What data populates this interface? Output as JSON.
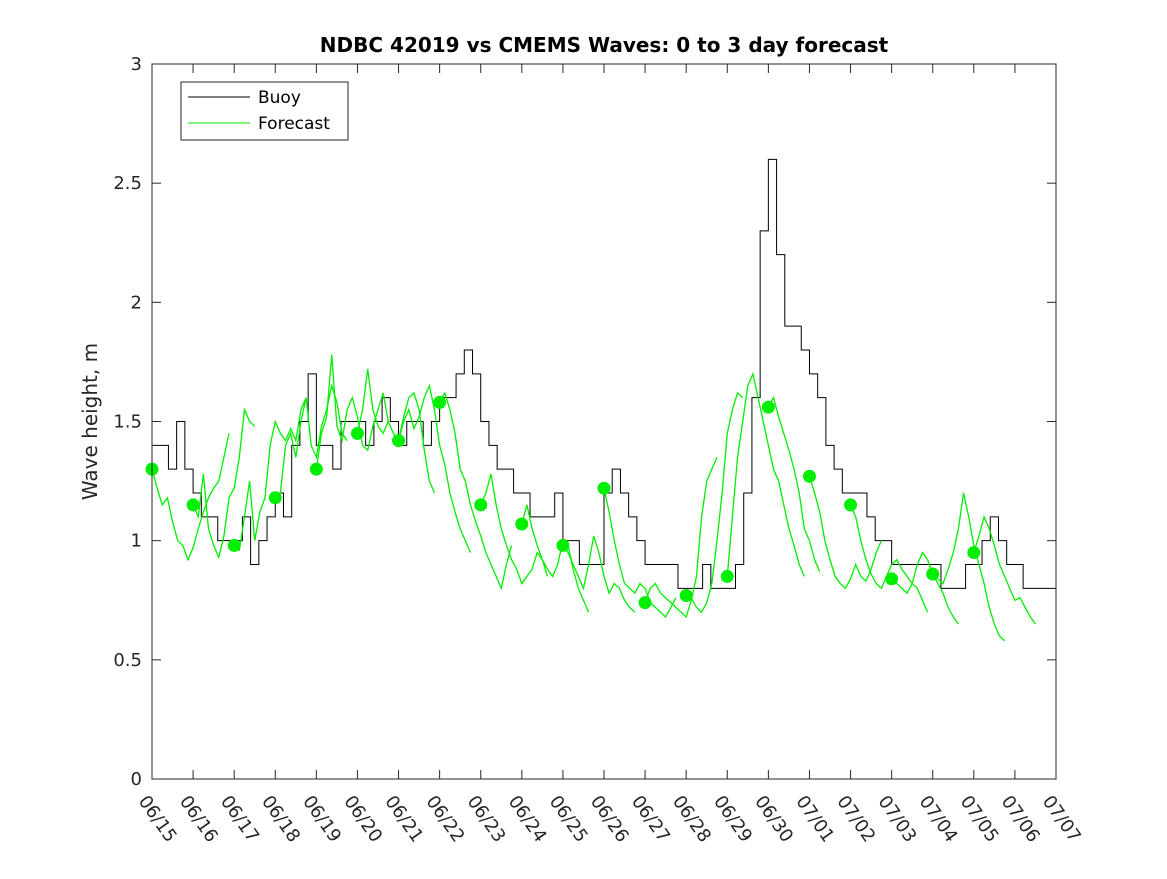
{
  "chart_data": {
    "type": "line",
    "title": "NDBC 42019 vs CMEMS Waves: 0 to 3 day forecast",
    "xlabel": "",
    "ylabel": "Wave height, m",
    "ylim": [
      0,
      3
    ],
    "xlim": [
      "06/15",
      "07/07"
    ],
    "x_ticks": [
      "06/15",
      "06/16",
      "06/17",
      "06/18",
      "06/19",
      "06/20",
      "06/21",
      "06/22",
      "06/23",
      "06/24",
      "06/25",
      "06/26",
      "06/27",
      "06/28",
      "06/29",
      "06/30",
      "07/01",
      "07/02",
      "07/03",
      "07/04",
      "07/05",
      "07/06",
      "07/07"
    ],
    "y_ticks": [
      "0",
      "0.5",
      "1",
      "1.5",
      "2",
      "2.5",
      "3"
    ],
    "grid": false,
    "legend_position": "top-left",
    "colors": {
      "buoy": "#000000",
      "forecast": "#00ee00",
      "axes": "#262626"
    },
    "buoy": {
      "name": "Buoy",
      "day": [
        0,
        0.2,
        0.4,
        0.6,
        0.8,
        1,
        1.2,
        1.4,
        1.6,
        1.8,
        2,
        2.2,
        2.4,
        2.6,
        2.8,
        3,
        3.2,
        3.4,
        3.6,
        3.8,
        4,
        4.2,
        4.4,
        4.6,
        4.8,
        5,
        5.2,
        5.4,
        5.6,
        5.8,
        6,
        6.2,
        6.4,
        6.6,
        6.8,
        7,
        7.2,
        7.4,
        7.6,
        7.8,
        8,
        8.2,
        8.4,
        8.6,
        8.8,
        9,
        9.2,
        9.4,
        9.6,
        9.8,
        10,
        10.2,
        10.4,
        10.6,
        10.8,
        11,
        11.2,
        11.4,
        11.6,
        11.8,
        12,
        12.2,
        12.4,
        12.6,
        12.8,
        13,
        13.2,
        13.4,
        13.6,
        13.8,
        14,
        14.2,
        14.4,
        14.6,
        14.8,
        15,
        15.2,
        15.4,
        15.6,
        15.8,
        16,
        16.2,
        16.4,
        16.6,
        16.8,
        17,
        17.2,
        17.4,
        17.6,
        17.8,
        18,
        18.2,
        18.4,
        18.6,
        18.8,
        19,
        19.2,
        19.4,
        19.6,
        19.8,
        20,
        20.2,
        20.4,
        20.6,
        20.8,
        21,
        21.2,
        21.4,
        21.6,
        21.8,
        22
      ],
      "values": [
        1.4,
        1.4,
        1.3,
        1.5,
        1.3,
        1.2,
        1.1,
        1.1,
        1.0,
        1.0,
        1.0,
        1.1,
        0.9,
        1.0,
        1.1,
        1.2,
        1.1,
        1.4,
        1.5,
        1.7,
        1.4,
        1.4,
        1.3,
        1.5,
        1.5,
        1.5,
        1.4,
        1.5,
        1.6,
        1.5,
        1.4,
        1.5,
        1.5,
        1.4,
        1.5,
        1.6,
        1.6,
        1.7,
        1.8,
        1.7,
        1.5,
        1.4,
        1.3,
        1.3,
        1.2,
        1.2,
        1.1,
        1.1,
        1.1,
        1.2,
        1.0,
        1.0,
        0.9,
        0.9,
        0.9,
        1.2,
        1.3,
        1.2,
        1.1,
        1.0,
        0.9,
        0.9,
        0.9,
        0.9,
        0.8,
        0.8,
        0.8,
        0.9,
        0.8,
        0.8,
        0.8,
        0.9,
        1.2,
        1.6,
        2.3,
        2.6,
        2.2,
        1.9,
        1.9,
        1.8,
        1.7,
        1.6,
        1.4,
        1.3,
        1.2,
        1.2,
        1.2,
        1.1,
        1.0,
        1.0,
        0.9,
        0.9,
        0.9,
        0.9,
        0.9,
        0.9,
        0.8,
        0.8,
        0.8,
        0.9,
        0.9,
        1.0,
        1.1,
        1.0,
        0.9,
        0.9,
        0.8,
        0.8,
        0.8,
        0.8,
        0.8
      ]
    },
    "forecast_name": "Forecast",
    "forecast_markers": {
      "day": [
        0,
        1,
        2,
        3,
        4,
        5,
        6,
        7,
        8,
        9,
        10,
        11,
        12,
        13,
        14,
        15,
        16,
        17,
        18,
        19,
        20
      ],
      "values": [
        1.3,
        1.15,
        0.98,
        1.18,
        1.3,
        1.45,
        1.42,
        1.58,
        1.15,
        1.07,
        0.98,
        1.22,
        0.74,
        0.77,
        0.85,
        1.56,
        1.27,
        1.15,
        0.84,
        0.86,
        0.95
      ]
    },
    "forecast_runs": [
      {
        "start_day": 0,
        "values": [
          1.3,
          1.22,
          1.15,
          1.18,
          1.08,
          1.0,
          0.98,
          0.92,
          0.97,
          1.05,
          1.12,
          1.18,
          1.22,
          1.25,
          1.35,
          1.45
        ]
      },
      {
        "start_day": 1,
        "values": [
          1.15,
          1.1,
          1.28,
          1.05,
          0.98,
          0.93,
          1.02,
          1.18,
          1.22,
          1.35,
          1.55,
          1.5,
          1.48
        ]
      },
      {
        "start_day": 2,
        "values": [
          0.98,
          0.96,
          1.1,
          1.25,
          1.0,
          1.12,
          1.18,
          1.4,
          1.5,
          1.45,
          1.42,
          1.47,
          1.42,
          1.55,
          1.6
        ]
      },
      {
        "start_day": 3,
        "values": [
          1.18,
          1.2,
          1.4,
          1.45,
          1.35,
          1.5,
          1.6,
          1.4,
          1.35,
          1.48,
          1.55,
          1.65,
          1.58,
          1.45,
          1.42
        ]
      },
      {
        "start_day": 4,
        "values": [
          1.3,
          1.45,
          1.52,
          1.78,
          1.48,
          1.42,
          1.55,
          1.6,
          1.52,
          1.4,
          1.38,
          1.48,
          1.55,
          1.62,
          1.5
        ]
      },
      {
        "start_day": 5,
        "values": [
          1.45,
          1.55,
          1.72,
          1.55,
          1.48,
          1.45,
          1.5,
          1.45,
          1.42,
          1.52,
          1.6,
          1.62,
          1.55,
          1.38,
          1.25,
          1.2
        ]
      },
      {
        "start_day": 6,
        "values": [
          1.42,
          1.5,
          1.55,
          1.47,
          1.52,
          1.6,
          1.65,
          1.55,
          1.4,
          1.32,
          1.2,
          1.12,
          1.05,
          1.0,
          0.95
        ]
      },
      {
        "start_day": 7,
        "values": [
          1.58,
          1.62,
          1.55,
          1.45,
          1.3,
          1.25,
          1.15,
          1.08,
          1.02,
          0.95,
          0.9,
          0.85,
          0.8,
          0.9,
          0.98
        ]
      },
      {
        "start_day": 8,
        "values": [
          1.15,
          1.2,
          1.28,
          1.15,
          1.05,
          0.98,
          0.92,
          0.88,
          0.82,
          0.85,
          0.88,
          0.95,
          0.92,
          0.85
        ]
      },
      {
        "start_day": 9,
        "values": [
          1.07,
          1.15,
          1.05,
          0.98,
          0.92,
          0.88,
          0.85,
          0.9,
          1.0,
          0.98,
          0.88,
          0.8,
          0.75,
          0.7
        ]
      },
      {
        "start_day": 10,
        "values": [
          0.98,
          0.95,
          0.9,
          0.85,
          0.8,
          0.9,
          1.02,
          0.95,
          0.85,
          0.78,
          0.82,
          0.8,
          0.75,
          0.72,
          0.7
        ]
      },
      {
        "start_day": 11,
        "values": [
          1.22,
          1.12,
          1.0,
          0.9,
          0.82,
          0.8,
          0.78,
          0.82,
          0.8,
          0.74,
          0.72,
          0.7,
          0.68,
          0.72,
          0.76
        ]
      },
      {
        "start_day": 12,
        "values": [
          0.74,
          0.8,
          0.82,
          0.78,
          0.76,
          0.74,
          0.72,
          0.7,
          0.68,
          0.75,
          0.85,
          1.1,
          1.25,
          1.3,
          1.35
        ]
      },
      {
        "start_day": 13,
        "values": [
          0.77,
          0.76,
          0.72,
          0.7,
          0.74,
          0.82,
          1.0,
          1.2,
          1.45,
          1.55,
          1.62,
          1.6
        ]
      },
      {
        "start_day": 14,
        "values": [
          0.85,
          1.1,
          1.35,
          1.5,
          1.65,
          1.7,
          1.6,
          1.5,
          1.4,
          1.3,
          1.25,
          1.15,
          1.05,
          0.98,
          0.9,
          0.85
        ]
      },
      {
        "start_day": 15,
        "values": [
          1.56,
          1.6,
          1.52,
          1.45,
          1.38,
          1.3,
          1.2,
          1.05,
          1.0,
          0.92,
          0.87
        ]
      },
      {
        "start_day": 16,
        "values": [
          1.27,
          1.2,
          1.12,
          1.0,
          0.92,
          0.85,
          0.82,
          0.8,
          0.84,
          0.9,
          0.85,
          0.83,
          0.88,
          0.95,
          1.0
        ]
      },
      {
        "start_day": 17,
        "values": [
          1.15,
          1.1,
          1.0,
          0.92,
          0.86,
          0.82,
          0.8,
          0.85,
          0.9,
          0.92,
          0.88,
          0.85,
          0.82,
          0.8,
          0.75,
          0.7
        ]
      },
      {
        "start_day": 18,
        "values": [
          0.84,
          0.82,
          0.8,
          0.78,
          0.82,
          0.9,
          0.95,
          0.92,
          0.86,
          0.82,
          0.78,
          0.72,
          0.68,
          0.65
        ]
      },
      {
        "start_day": 19,
        "values": [
          0.86,
          0.84,
          0.82,
          0.88,
          0.95,
          1.05,
          1.2,
          1.1,
          0.98,
          0.9,
          0.82,
          0.72,
          0.65,
          0.6,
          0.58
        ]
      },
      {
        "start_day": 20,
        "values": [
          0.95,
          1.02,
          1.1,
          1.05,
          0.98,
          0.9,
          0.85,
          0.8,
          0.75,
          0.76,
          0.72,
          0.68,
          0.65
        ]
      }
    ]
  }
}
